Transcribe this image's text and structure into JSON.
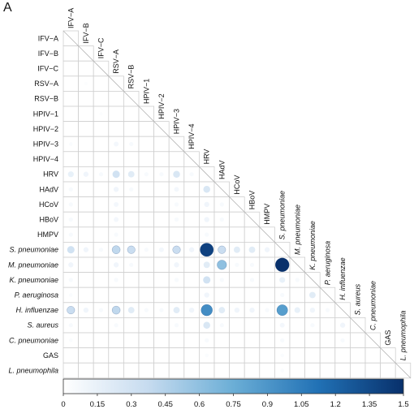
{
  "panel_label": "A",
  "chart_data": {
    "type": "heatmap",
    "subtype": "lower-triangle correlation dot matrix",
    "labels": [
      "IFV−A",
      "IFV−B",
      "IFV−C",
      "RSV−A",
      "RSV−B",
      "HPIV−1",
      "HPIV−2",
      "HPIV−3",
      "HPIV−4",
      "HRV",
      "HAdV",
      "HCoV",
      "HBoV",
      "HMPV",
      "S. pneumoniae",
      "M. pneumoniae",
      "K. pneumoniae",
      "P. aeruginosa",
      "H. influenzae",
      "S. aureus",
      "C. pneumoniae",
      "GAS",
      "L. pneumophila"
    ],
    "italic_labels": [
      "S. pneumoniae",
      "M. pneumoniae",
      "K. pneumoniae",
      "P. aeruginosa",
      "H. influenzae",
      "S. aureus",
      "C. pneumoniae",
      "L. pneumophila"
    ],
    "colorbar": {
      "min": 0,
      "max": 1.5,
      "ticks": [
        "0",
        "0.15",
        "0.3",
        "0.45",
        "0.6",
        "0.75",
        "0.9",
        "1.05",
        "1.2",
        "1.35",
        "1.5"
      ],
      "color_low": "#ffffff",
      "color_high": "#08306b"
    },
    "cells": [
      {
        "row": "RSV−A",
        "col": "IFV−B",
        "value": 0.02
      },
      {
        "row": "HPIV−1",
        "col": "IFV−C",
        "value": 0.02
      },
      {
        "row": "HPIV−3",
        "col": "IFV−A",
        "value": 0.03
      },
      {
        "row": "HPIV−3",
        "col": "RSV−A",
        "value": 0.08
      },
      {
        "row": "HPIV−3",
        "col": "RSV−B",
        "value": 0.05
      },
      {
        "row": "HRV",
        "col": "IFV−A",
        "value": 0.15
      },
      {
        "row": "HRV",
        "col": "IFV−B",
        "value": 0.1
      },
      {
        "row": "HRV",
        "col": "IFV−C",
        "value": 0.05
      },
      {
        "row": "HRV",
        "col": "RSV−A",
        "value": 0.3
      },
      {
        "row": "HRV",
        "col": "RSV−B",
        "value": 0.2
      },
      {
        "row": "HRV",
        "col": "HPIV−1",
        "value": 0.05
      },
      {
        "row": "HRV",
        "col": "HPIV−2",
        "value": 0.05
      },
      {
        "row": "HRV",
        "col": "HPIV−3",
        "value": 0.25
      },
      {
        "row": "HRV",
        "col": "HPIV−4",
        "value": 0.05
      },
      {
        "row": "HAdV",
        "col": "IFV−A",
        "value": 0.05
      },
      {
        "row": "HAdV",
        "col": "RSV−A",
        "value": 0.1
      },
      {
        "row": "HAdV",
        "col": "RSV−B",
        "value": 0.05
      },
      {
        "row": "HAdV",
        "col": "HPIV−3",
        "value": 0.08
      },
      {
        "row": "HAdV",
        "col": "HRV",
        "value": 0.25
      },
      {
        "row": "HCoV",
        "col": "IFV−A",
        "value": 0.05
      },
      {
        "row": "HCoV",
        "col": "RSV−A",
        "value": 0.08
      },
      {
        "row": "HCoV",
        "col": "HPIV−3",
        "value": 0.05
      },
      {
        "row": "HCoV",
        "col": "HRV",
        "value": 0.1
      },
      {
        "row": "HCoV",
        "col": "HAdV",
        "value": 0.05
      },
      {
        "row": "HBoV",
        "col": "IFV−A",
        "value": 0.05
      },
      {
        "row": "HBoV",
        "col": "RSV−A",
        "value": 0.08
      },
      {
        "row": "HBoV",
        "col": "HPIV−3",
        "value": 0.05
      },
      {
        "row": "HBoV",
        "col": "HRV",
        "value": 0.1
      },
      {
        "row": "HBoV",
        "col": "HAdV",
        "value": 0.05
      },
      {
        "row": "HMPV",
        "col": "IFV−A",
        "value": 0.05
      },
      {
        "row": "HMPV",
        "col": "RSV−A",
        "value": 0.05
      },
      {
        "row": "HMPV",
        "col": "HRV",
        "value": 0.05
      },
      {
        "row": "S. pneumoniae",
        "col": "IFV−A",
        "value": 0.3
      },
      {
        "row": "S. pneumoniae",
        "col": "IFV−B",
        "value": 0.1
      },
      {
        "row": "S. pneumoniae",
        "col": "IFV−C",
        "value": 0.05
      },
      {
        "row": "S. pneumoniae",
        "col": "RSV−A",
        "value": 0.4
      },
      {
        "row": "S. pneumoniae",
        "col": "RSV−B",
        "value": 0.35
      },
      {
        "row": "S. pneumoniae",
        "col": "HPIV−1",
        "value": 0.05
      },
      {
        "row": "S. pneumoniae",
        "col": "HPIV−2",
        "value": 0.08
      },
      {
        "row": "S. pneumoniae",
        "col": "HPIV−3",
        "value": 0.35
      },
      {
        "row": "S. pneumoniae",
        "col": "HPIV−4",
        "value": 0.1
      },
      {
        "row": "S. pneumoniae",
        "col": "HRV",
        "value": 1.4
      },
      {
        "row": "S. pneumoniae",
        "col": "HAdV",
        "value": 0.35
      },
      {
        "row": "S. pneumoniae",
        "col": "HCoV",
        "value": 0.2
      },
      {
        "row": "S. pneumoniae",
        "col": "HBoV",
        "value": 0.2
      },
      {
        "row": "S. pneumoniae",
        "col": "HMPV",
        "value": 0.1
      },
      {
        "row": "M. pneumoniae",
        "col": "IFV−A",
        "value": 0.1
      },
      {
        "row": "M. pneumoniae",
        "col": "RSV−A",
        "value": 0.1
      },
      {
        "row": "M. pneumoniae",
        "col": "RSV−B",
        "value": 0.05
      },
      {
        "row": "M. pneumoniae",
        "col": "HPIV−3",
        "value": 0.1
      },
      {
        "row": "M. pneumoniae",
        "col": "HRV",
        "value": 0.2
      },
      {
        "row": "M. pneumoniae",
        "col": "HAdV",
        "value": 0.6
      },
      {
        "row": "M. pneumoniae",
        "col": "HCoV",
        "value": 0.05
      },
      {
        "row": "M. pneumoniae",
        "col": "HBoV",
        "value": 0.05
      },
      {
        "row": "M. pneumoniae",
        "col": "S. pneumoniae",
        "value": 1.5
      },
      {
        "row": "K. pneumoniae",
        "col": "IFV−A",
        "value": 0.05
      },
      {
        "row": "K. pneumoniae",
        "col": "RSV−A",
        "value": 0.05
      },
      {
        "row": "K. pneumoniae",
        "col": "HPIV−3",
        "value": 0.05
      },
      {
        "row": "K. pneumoniae",
        "col": "HRV",
        "value": 0.3
      },
      {
        "row": "K. pneumoniae",
        "col": "HAdV",
        "value": 0.05
      },
      {
        "row": "K. pneumoniae",
        "col": "HBoV",
        "value": 0.05
      },
      {
        "row": "K. pneumoniae",
        "col": "S. pneumoniae",
        "value": 0.15
      },
      {
        "row": "K. pneumoniae",
        "col": "M. pneumoniae",
        "value": 0.05
      },
      {
        "row": "P. aeruginosa",
        "col": "IFV−A",
        "value": 0.03
      },
      {
        "row": "P. aeruginosa",
        "col": "HRV",
        "value": 0.1
      },
      {
        "row": "P. aeruginosa",
        "col": "S. pneumoniae",
        "value": 0.05
      },
      {
        "row": "P. aeruginosa",
        "col": "K. pneumoniae",
        "value": 0.2
      },
      {
        "row": "H. influenzae",
        "col": "IFV−A",
        "value": 0.35
      },
      {
        "row": "H. influenzae",
        "col": "IFV−B",
        "value": 0.1
      },
      {
        "row": "H. influenzae",
        "col": "IFV−C",
        "value": 0.05
      },
      {
        "row": "H. influenzae",
        "col": "RSV−A",
        "value": 0.4
      },
      {
        "row": "H. influenzae",
        "col": "RSV−B",
        "value": 0.2
      },
      {
        "row": "H. influenzae",
        "col": "HPIV−1",
        "value": 0.05
      },
      {
        "row": "H. influenzae",
        "col": "HPIV−2",
        "value": 0.05
      },
      {
        "row": "H. influenzae",
        "col": "HPIV−3",
        "value": 0.2
      },
      {
        "row": "H. influenzae",
        "col": "HPIV−4",
        "value": 0.1
      },
      {
        "row": "H. influenzae",
        "col": "HRV",
        "value": 0.95
      },
      {
        "row": "H. influenzae",
        "col": "HAdV",
        "value": 0.2
      },
      {
        "row": "H. influenzae",
        "col": "HCoV",
        "value": 0.1
      },
      {
        "row": "H. influenzae",
        "col": "HBoV",
        "value": 0.1
      },
      {
        "row": "H. influenzae",
        "col": "HMPV",
        "value": 0.05
      },
      {
        "row": "H. influenzae",
        "col": "S. pneumoniae",
        "value": 0.85
      },
      {
        "row": "H. influenzae",
        "col": "M. pneumoniae",
        "value": 0.15
      },
      {
        "row": "H. influenzae",
        "col": "K. pneumoniae",
        "value": 0.1
      },
      {
        "row": "H. influenzae",
        "col": "P. aeruginosa",
        "value": 0.05
      },
      {
        "row": "S. aureus",
        "col": "IFV−A",
        "value": 0.05
      },
      {
        "row": "S. aureus",
        "col": "RSV−A",
        "value": 0.05
      },
      {
        "row": "S. aureus",
        "col": "HPIV−3",
        "value": 0.05
      },
      {
        "row": "S. aureus",
        "col": "HRV",
        "value": 0.25
      },
      {
        "row": "S. aureus",
        "col": "HAdV",
        "value": 0.05
      },
      {
        "row": "S. aureus",
        "col": "S. pneumoniae",
        "value": 0.08
      },
      {
        "row": "S. aureus",
        "col": "K. pneumoniae",
        "value": 0.05
      },
      {
        "row": "S. aureus",
        "col": "H. influenzae",
        "value": 0.1
      },
      {
        "row": "C. pneumoniae",
        "col": "IFV−A",
        "value": 0.03
      },
      {
        "row": "C. pneumoniae",
        "col": "HRV",
        "value": 0.05
      },
      {
        "row": "C. pneumoniae",
        "col": "S. pneumoniae",
        "value": 0.05
      },
      {
        "row": "C. pneumoniae",
        "col": "H. influenzae",
        "value": 0.05
      },
      {
        "row": "GAS",
        "col": "HRV",
        "value": 0.03
      },
      {
        "row": "GAS",
        "col": "S. pneumoniae",
        "value": 0.03
      },
      {
        "row": "L. pneumophila",
        "col": "S. pneumoniae",
        "value": 0.03
      }
    ]
  }
}
